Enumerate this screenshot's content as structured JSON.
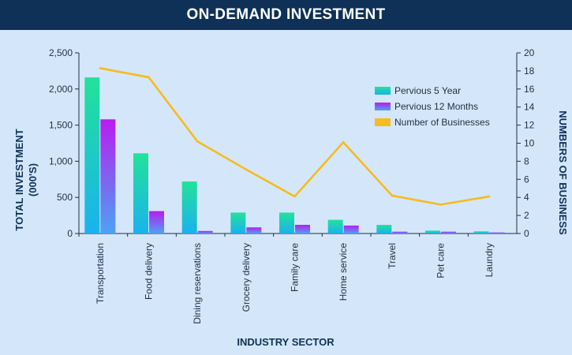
{
  "chart_data": {
    "type": "bar+line",
    "title": "ON-DEMAND INVESTMENT",
    "xlabel": "INDUSTRY SECTOR",
    "ylabel_left": "TOTAL INVESTMENT (000'S)",
    "ylabel_right": "NUMBERS OF BUSINESS",
    "ylim_left": [
      0,
      2500
    ],
    "yticks_left": [
      0,
      500,
      1000,
      1500,
      2000,
      2500
    ],
    "yticks_left_labels": [
      "0",
      "500",
      "1,000",
      "1,500",
      "2,000",
      "2,500"
    ],
    "ylim_right": [
      0,
      20
    ],
    "yticks_right": [
      0,
      2,
      4,
      6,
      8,
      10,
      12,
      14,
      16,
      18,
      20
    ],
    "categories": [
      "Transportation",
      "Food delivery",
      "Dining reservations",
      "Grocery delivery",
      "Family care",
      "Home service",
      "Travel",
      "Pet care",
      "Laundry"
    ],
    "series": [
      {
        "name": "Pervious 5 Year",
        "type": "bar",
        "axis": "left",
        "values": [
          2160,
          1110,
          720,
          290,
          290,
          190,
          120,
          40,
          30
        ]
      },
      {
        "name": "Pervious 12 Months",
        "type": "bar",
        "axis": "left",
        "values": [
          1580,
          310,
          35,
          85,
          120,
          110,
          25,
          25,
          15
        ]
      },
      {
        "name": "Number of Businesses",
        "type": "line",
        "axis": "right",
        "values": [
          18.3,
          17.3,
          10.2,
          7.1,
          4.1,
          10.1,
          4.2,
          3.2,
          4.1
        ]
      }
    ],
    "legend_position": "top-right",
    "grid": false,
    "colors": {
      "bar1_top": "#22e29a",
      "bar1_bottom": "#1ab2ee",
      "bar2_top": "#b91cf0",
      "bar2_bottom": "#4ca3f2",
      "line": "#f6bb1f"
    }
  }
}
